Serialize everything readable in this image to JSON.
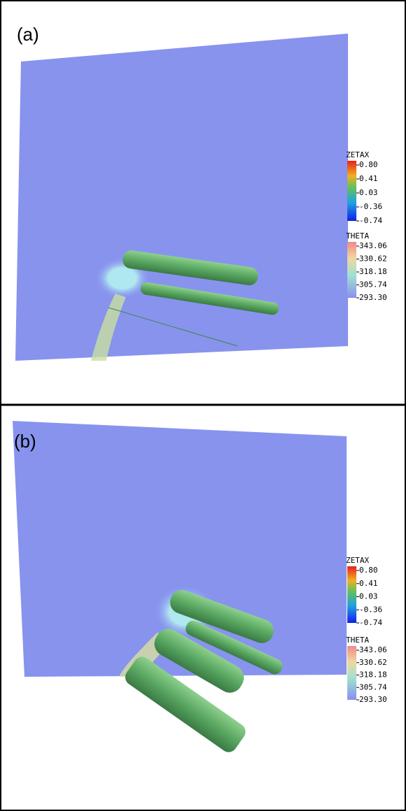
{
  "panels": [
    {
      "label": "(a)",
      "colorbars": [
        {
          "title": "ZETAX",
          "ticks": [
            "0.80",
            "0.41",
            "0.03",
            "-0.36",
            "-0.74"
          ]
        },
        {
          "title": "THETA",
          "ticks": [
            "343.06",
            "330.62",
            "318.18",
            "305.74",
            "293.30"
          ]
        }
      ]
    },
    {
      "label": "(b)",
      "colorbars": [
        {
          "title": "ZETAX",
          "ticks": [
            "0.80",
            "0.41",
            "0.03",
            "-0.36",
            "-0.74"
          ]
        },
        {
          "title": "THETA",
          "ticks": [
            "343.06",
            "330.62",
            "318.18",
            "305.74",
            "293.30"
          ]
        }
      ]
    }
  ]
}
